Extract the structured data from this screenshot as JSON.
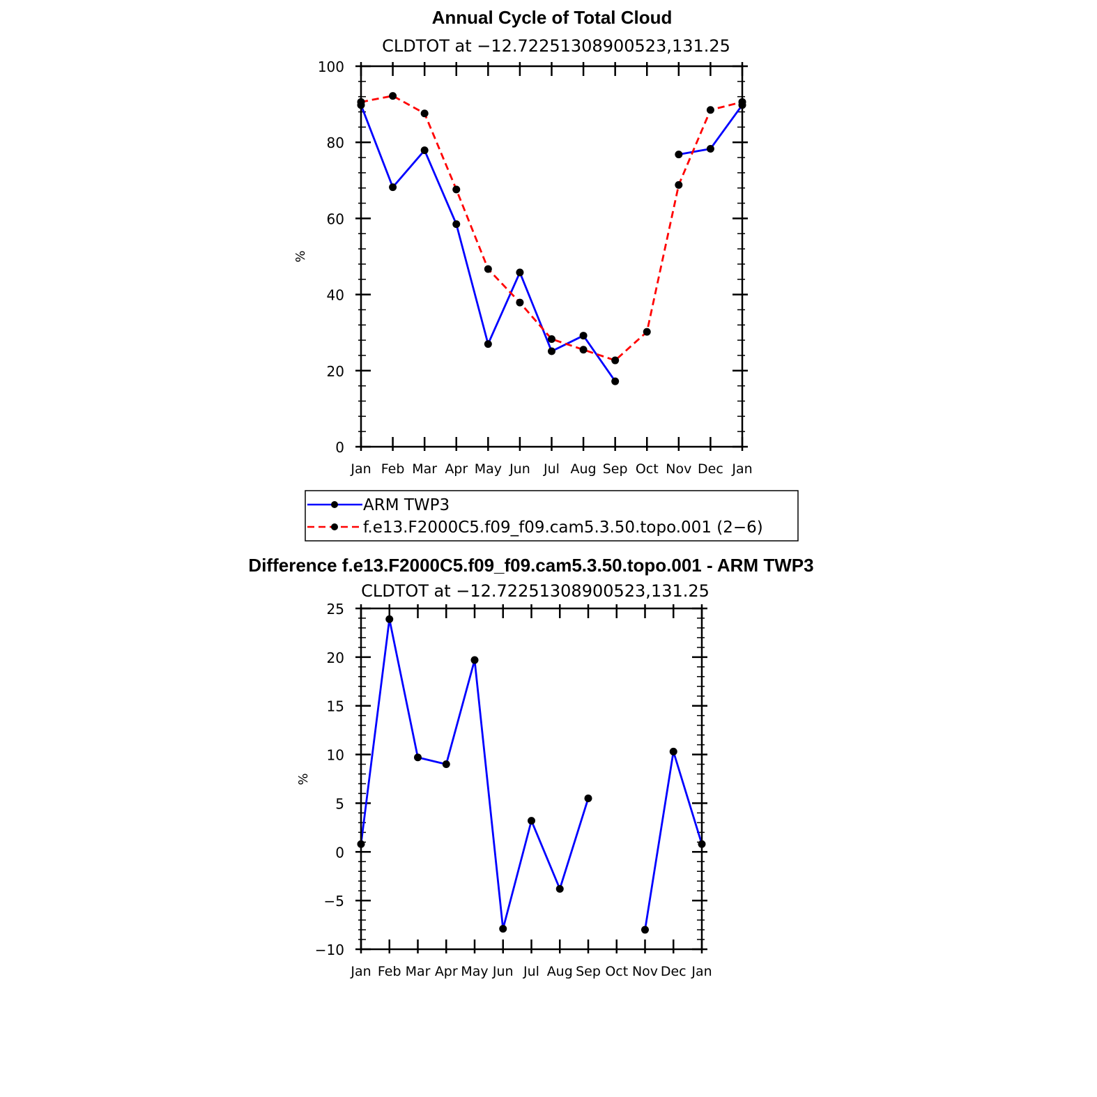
{
  "chart_data": [
    {
      "type": "line",
      "title": "Annual Cycle of Total Cloud",
      "subtitle": "CLDTOT at −12.72251308900523,131.25",
      "ylabel": "%",
      "ylim": [
        0,
        100
      ],
      "yticks": [
        0,
        20,
        40,
        60,
        80,
        100
      ],
      "categories": [
        "Jan",
        "Feb",
        "Mar",
        "Apr",
        "May",
        "Jun",
        "Jul",
        "Aug",
        "Sep",
        "Oct",
        "Nov",
        "Dec",
        "Jan"
      ],
      "series": [
        {
          "name": "ARM TWP3",
          "color": "#0000ff",
          "dash": "solid",
          "values": [
            89.8,
            68.2,
            77.9,
            58.5,
            27.0,
            45.8,
            25.1,
            29.2,
            17.2,
            null,
            76.8,
            78.3,
            89.8
          ]
        },
        {
          "name": "f.e13.F2000C5.f09_f09.cam5.3.50.topo.001 (2−6)",
          "color": "#ff0000",
          "dash": "dashed",
          "values": [
            90.6,
            92.2,
            87.6,
            67.6,
            46.7,
            37.9,
            28.3,
            25.5,
            22.7,
            30.2,
            68.8,
            88.5,
            90.6
          ]
        }
      ],
      "legend": "bottom"
    },
    {
      "type": "line",
      "title": "Difference f.e13.F2000C5.f09_f09.cam5.3.50.topo.001 - ARM TWP3",
      "subtitle": "CLDTOT at −12.72251308900523,131.25",
      "ylabel": "%",
      "ylim": [
        -10,
        25
      ],
      "yticks": [
        -10,
        -5,
        0,
        5,
        10,
        15,
        20,
        25
      ],
      "ytick_labels": [
        "−10",
        "−5",
        "0",
        "5",
        "10",
        "15",
        "20",
        "25"
      ],
      "categories": [
        "Jan",
        "Feb",
        "Mar",
        "Apr",
        "May",
        "Jun",
        "Jul",
        "Aug",
        "Sep",
        "Oct",
        "Nov",
        "Dec",
        "Jan"
      ],
      "series": [
        {
          "color": "#0000ff",
          "dash": "solid",
          "values": [
            0.8,
            23.9,
            9.7,
            9.0,
            19.7,
            -7.9,
            3.2,
            -3.8,
            5.5,
            null,
            -8.0,
            10.3,
            0.8
          ]
        }
      ]
    }
  ]
}
